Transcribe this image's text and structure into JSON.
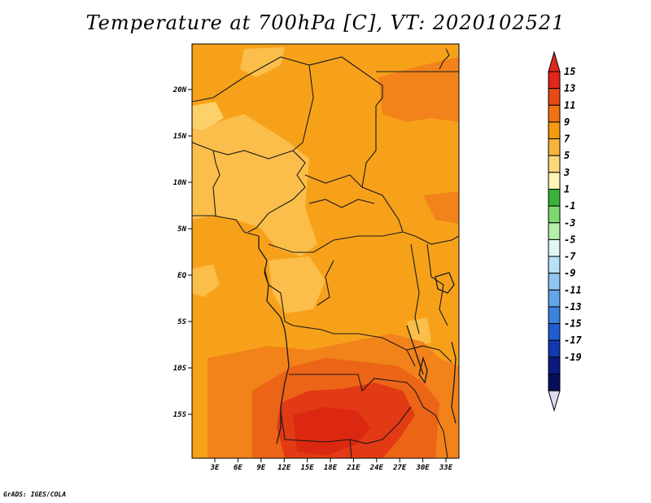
{
  "title": "Temperature at 700hPa [C], VT: 2020102521",
  "credit": "GrADS: IGES/COLA",
  "latitude_labels": [
    "20N",
    "15N",
    "10N",
    "5N",
    "EQ",
    "5S",
    "10S",
    "15S"
  ],
  "longitude_labels": [
    "3E",
    "6E",
    "9E",
    "12E",
    "15E",
    "18E",
    "21E",
    "24E",
    "27E",
    "30E",
    "33E"
  ],
  "colorbar": {
    "labels": [
      "15",
      "13",
      "11",
      "9",
      "7",
      "5",
      "3",
      "1",
      "-1",
      "-3",
      "-5",
      "-7",
      "-9",
      "-11",
      "-13",
      "-15",
      "-17",
      "-19"
    ],
    "colors": [
      "#e2261b",
      "#e84a15",
      "#f07212",
      "#f59a10",
      "#f8b43a",
      "#fcd77a",
      "#fff5b4",
      "#39b23c",
      "#7ed96f",
      "#b5efaa",
      "#e1f5f4",
      "#b8e0f8",
      "#8fc6f2",
      "#62a6ea",
      "#3b82df",
      "#1f5ed1",
      "#1238b0",
      "#0a1a80",
      "#060d5a"
    ],
    "top_arrow_color": "#e2261b",
    "bottom_arrow_color": "#dcdcf5"
  },
  "map_colors": {
    "base": "#f7a11a",
    "cool": "#fbbe4a",
    "cooler": "#fcd06a",
    "warm": "#f2821a",
    "warmer": "#ec6416",
    "hot": "#e23a14",
    "hottest": "#dc2810"
  }
}
